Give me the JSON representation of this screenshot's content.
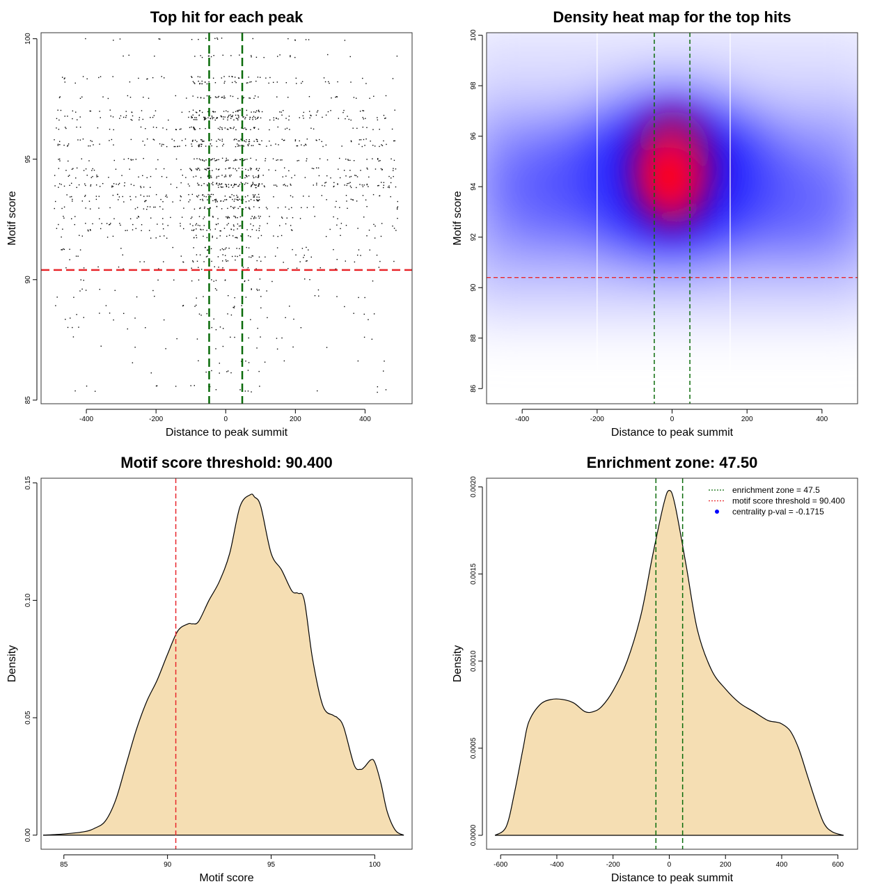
{
  "colors": {
    "threshold_line": "#e8262b",
    "zone_line": "#0a6b0a",
    "density_fill": "#f5deb3",
    "heat_low": "#ffffff",
    "heat_mid": "#0000ff",
    "heat_high": "#ff0000",
    "legend_point": "#0000ff"
  },
  "chart_data": [
    {
      "type": "scatter",
      "title": "Top hit for each peak",
      "xlabel": "Distance to peak summit",
      "ylabel": "Motif score",
      "xlim": [
        -530,
        535
      ],
      "ylim": [
        84.85,
        100.25
      ],
      "xticks": [
        -400,
        -200,
        0,
        200,
        400
      ],
      "yticks": [
        85,
        90,
        95,
        100
      ],
      "xticklabels": [
        "-400",
        "-200",
        "0",
        "200",
        "400"
      ],
      "yticklabels": [
        "85",
        "90",
        "95",
        "100"
      ],
      "x_range": [
        -495,
        495
      ],
      "y_levels": [
        100,
        99.3,
        98.4,
        98.2,
        97.6,
        97.0,
        96.8,
        96.7,
        96.3,
        95.8,
        95.6,
        95.0,
        94.6,
        94.3,
        94.0,
        93.9,
        93.5,
        93.3,
        93.0,
        92.6,
        92.3,
        92.1,
        91.8,
        91.3,
        91.0,
        90.8,
        90.5,
        90.0,
        89.6,
        89.3,
        88.9,
        88.6,
        88.4,
        88.0,
        87.6,
        87.2,
        86.6,
        86.2,
        85.6,
        85.4
      ],
      "hlines": [
        90.4
      ],
      "vlines": [
        -47.5,
        47.5
      ]
    },
    {
      "type": "heatmap",
      "title": "Density heat map for the top hits",
      "xlabel": "Distance to peak summit",
      "ylabel": "Motif score",
      "xlim": [
        -495,
        495
      ],
      "ylim": [
        85.4,
        100.1
      ],
      "xticks": [
        -400,
        -200,
        0,
        200,
        400
      ],
      "yticks": [
        86,
        88,
        90,
        92,
        94,
        96,
        98,
        100
      ],
      "xticklabels": [
        "-400",
        "-200",
        "0",
        "200",
        "400"
      ],
      "yticklabels": [
        "86",
        "88",
        "90",
        "92",
        "94",
        "96",
        "98",
        "100"
      ],
      "density_peak": {
        "x": 0,
        "y": 94.4
      },
      "hlines": [
        90.4
      ],
      "vlines": [
        -47.5,
        47.5
      ],
      "white_vlines": [
        -200,
        155
      ]
    },
    {
      "type": "area",
      "title": "Motif score threshold: 90.400",
      "xlabel": "Motif score",
      "ylabel": "Density",
      "xlim": [
        83.9,
        101.8
      ],
      "ylim": [
        -0.006,
        0.152
      ],
      "xticks": [
        85,
        90,
        95,
        100
      ],
      "yticks": [
        0,
        0.05,
        0.1,
        0.15
      ],
      "xticklabels": [
        "85",
        "90",
        "95",
        "100"
      ],
      "yticklabels": [
        "0.00",
        "0.05",
        "0.10",
        "0.15"
      ],
      "x": [
        84,
        85,
        86,
        86.5,
        87,
        87.5,
        88,
        88.5,
        89,
        89.5,
        90,
        90.5,
        91,
        91.2,
        91.5,
        92,
        92.5,
        93,
        93.5,
        94,
        94.2,
        94.5,
        95,
        95.5,
        96,
        96.3,
        96.6,
        97,
        97.5,
        98,
        98.2,
        98.5,
        99,
        99.3,
        99.5,
        99.8,
        100,
        100.3,
        100.6,
        101,
        101.4
      ],
      "y": [
        0,
        0.0005,
        0.0015,
        0.003,
        0.006,
        0.015,
        0.03,
        0.045,
        0.057,
        0.066,
        0.077,
        0.087,
        0.09,
        0.09,
        0.091,
        0.1,
        0.108,
        0.12,
        0.14,
        0.145,
        0.144,
        0.14,
        0.12,
        0.113,
        0.104,
        0.103,
        0.1,
        0.075,
        0.055,
        0.051,
        0.05,
        0.046,
        0.03,
        0.028,
        0.029,
        0.032,
        0.031,
        0.022,
        0.01,
        0.002,
        0
      ],
      "vlines": [
        90.4
      ]
    },
    {
      "type": "area",
      "title": "Enrichment zone: 47.50",
      "xlabel": "Distance to peak summit",
      "ylabel": "Density",
      "xlim": [
        -650,
        670
      ],
      "ylim": [
        -8e-05,
        0.00205
      ],
      "xticks": [
        -600,
        -400,
        -200,
        0,
        200,
        400,
        600
      ],
      "yticks": [
        0,
        0.0005,
        0.001,
        0.0015,
        0.002
      ],
      "xticklabels": [
        "-600",
        "-400",
        "-200",
        "0",
        "200",
        "400",
        "600"
      ],
      "yticklabels": [
        "0.0000",
        "0.0005",
        "0.0010",
        "0.0015",
        "0.0020"
      ],
      "x": [
        -620,
        -580,
        -550,
        -520,
        -500,
        -460,
        -420,
        -380,
        -340,
        -300,
        -270,
        -240,
        -200,
        -150,
        -100,
        -60,
        -20,
        0,
        20,
        60,
        100,
        150,
        200,
        250,
        300,
        350,
        380,
        400,
        430,
        460,
        490,
        520,
        550,
        580,
        620
      ],
      "y": [
        0,
        5e-05,
        0.00025,
        0.0005,
        0.00065,
        0.00075,
        0.00078,
        0.00078,
        0.00076,
        0.00071,
        0.00071,
        0.00074,
        0.00083,
        0.001,
        0.00127,
        0.0016,
        0.0019,
        0.00198,
        0.0019,
        0.00155,
        0.00118,
        0.00095,
        0.00084,
        0.00076,
        0.00071,
        0.00066,
        0.00065,
        0.00064,
        0.0006,
        0.0005,
        0.00035,
        0.0002,
        7e-05,
        2e-05,
        0
      ],
      "vlines": [
        -47.5,
        47.5
      ],
      "legend": [
        {
          "label": "enrichment zone = 47.5",
          "symbol": "dotted-line",
          "color": "#0a6b0a"
        },
        {
          "label": "motif score threshold = 90.400",
          "symbol": "dotted-line",
          "color": "#e8262b"
        },
        {
          "label": "centrality p-val = -0.1715",
          "symbol": "point",
          "color": "#0000ff"
        }
      ],
      "legend_position": "top-right"
    }
  ]
}
